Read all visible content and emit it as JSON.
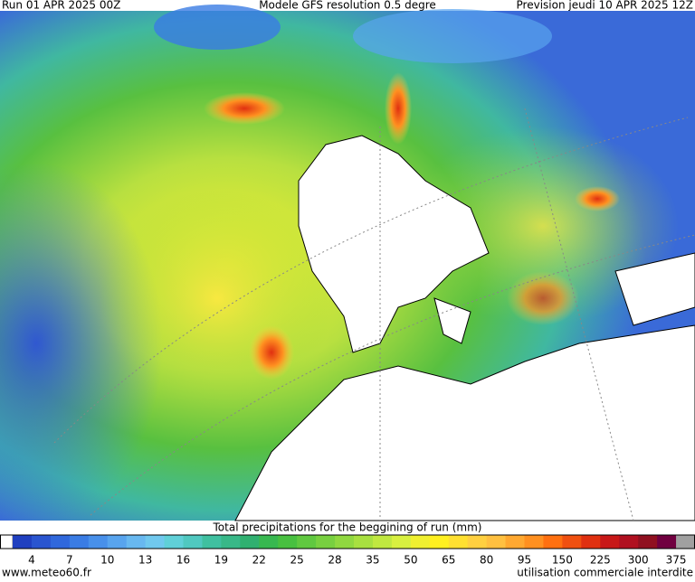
{
  "header": {
    "run": "Run 01 APR 2025 00Z",
    "model": "Modele GFS resolution 0.5 degre",
    "forecast": "Prevision jeudi 10 APR 2025 12Z"
  },
  "legend": {
    "title": "Total precipitations for the beggining of run (mm)",
    "labels": [
      4,
      7,
      10,
      13,
      16,
      19,
      22,
      25,
      28,
      35,
      50,
      65,
      80,
      95,
      150,
      225,
      300,
      375
    ],
    "colors": [
      "#2040c0",
      "#2a55d0",
      "#3068dc",
      "#3a7ce4",
      "#4890ea",
      "#58a4ee",
      "#68b8f0",
      "#70c8ee",
      "#60d0d8",
      "#50c8c0",
      "#40c0a0",
      "#38b888",
      "#30b070",
      "#38b850",
      "#48c040",
      "#60c840",
      "#78d040",
      "#90d840",
      "#a8e040",
      "#c0e840",
      "#d8f040",
      "#f0f030",
      "#fff020",
      "#ffe030",
      "#ffd040",
      "#ffc040",
      "#ffa830",
      "#ff9020",
      "#ff7010",
      "#f05010",
      "#e03010",
      "#c81818",
      "#b01020",
      "#901020",
      "#700040",
      "#a0a0a0"
    ]
  },
  "footer": {
    "site": "www.meteo60.fr",
    "notice": "utilisation commerciale interdite"
  }
}
